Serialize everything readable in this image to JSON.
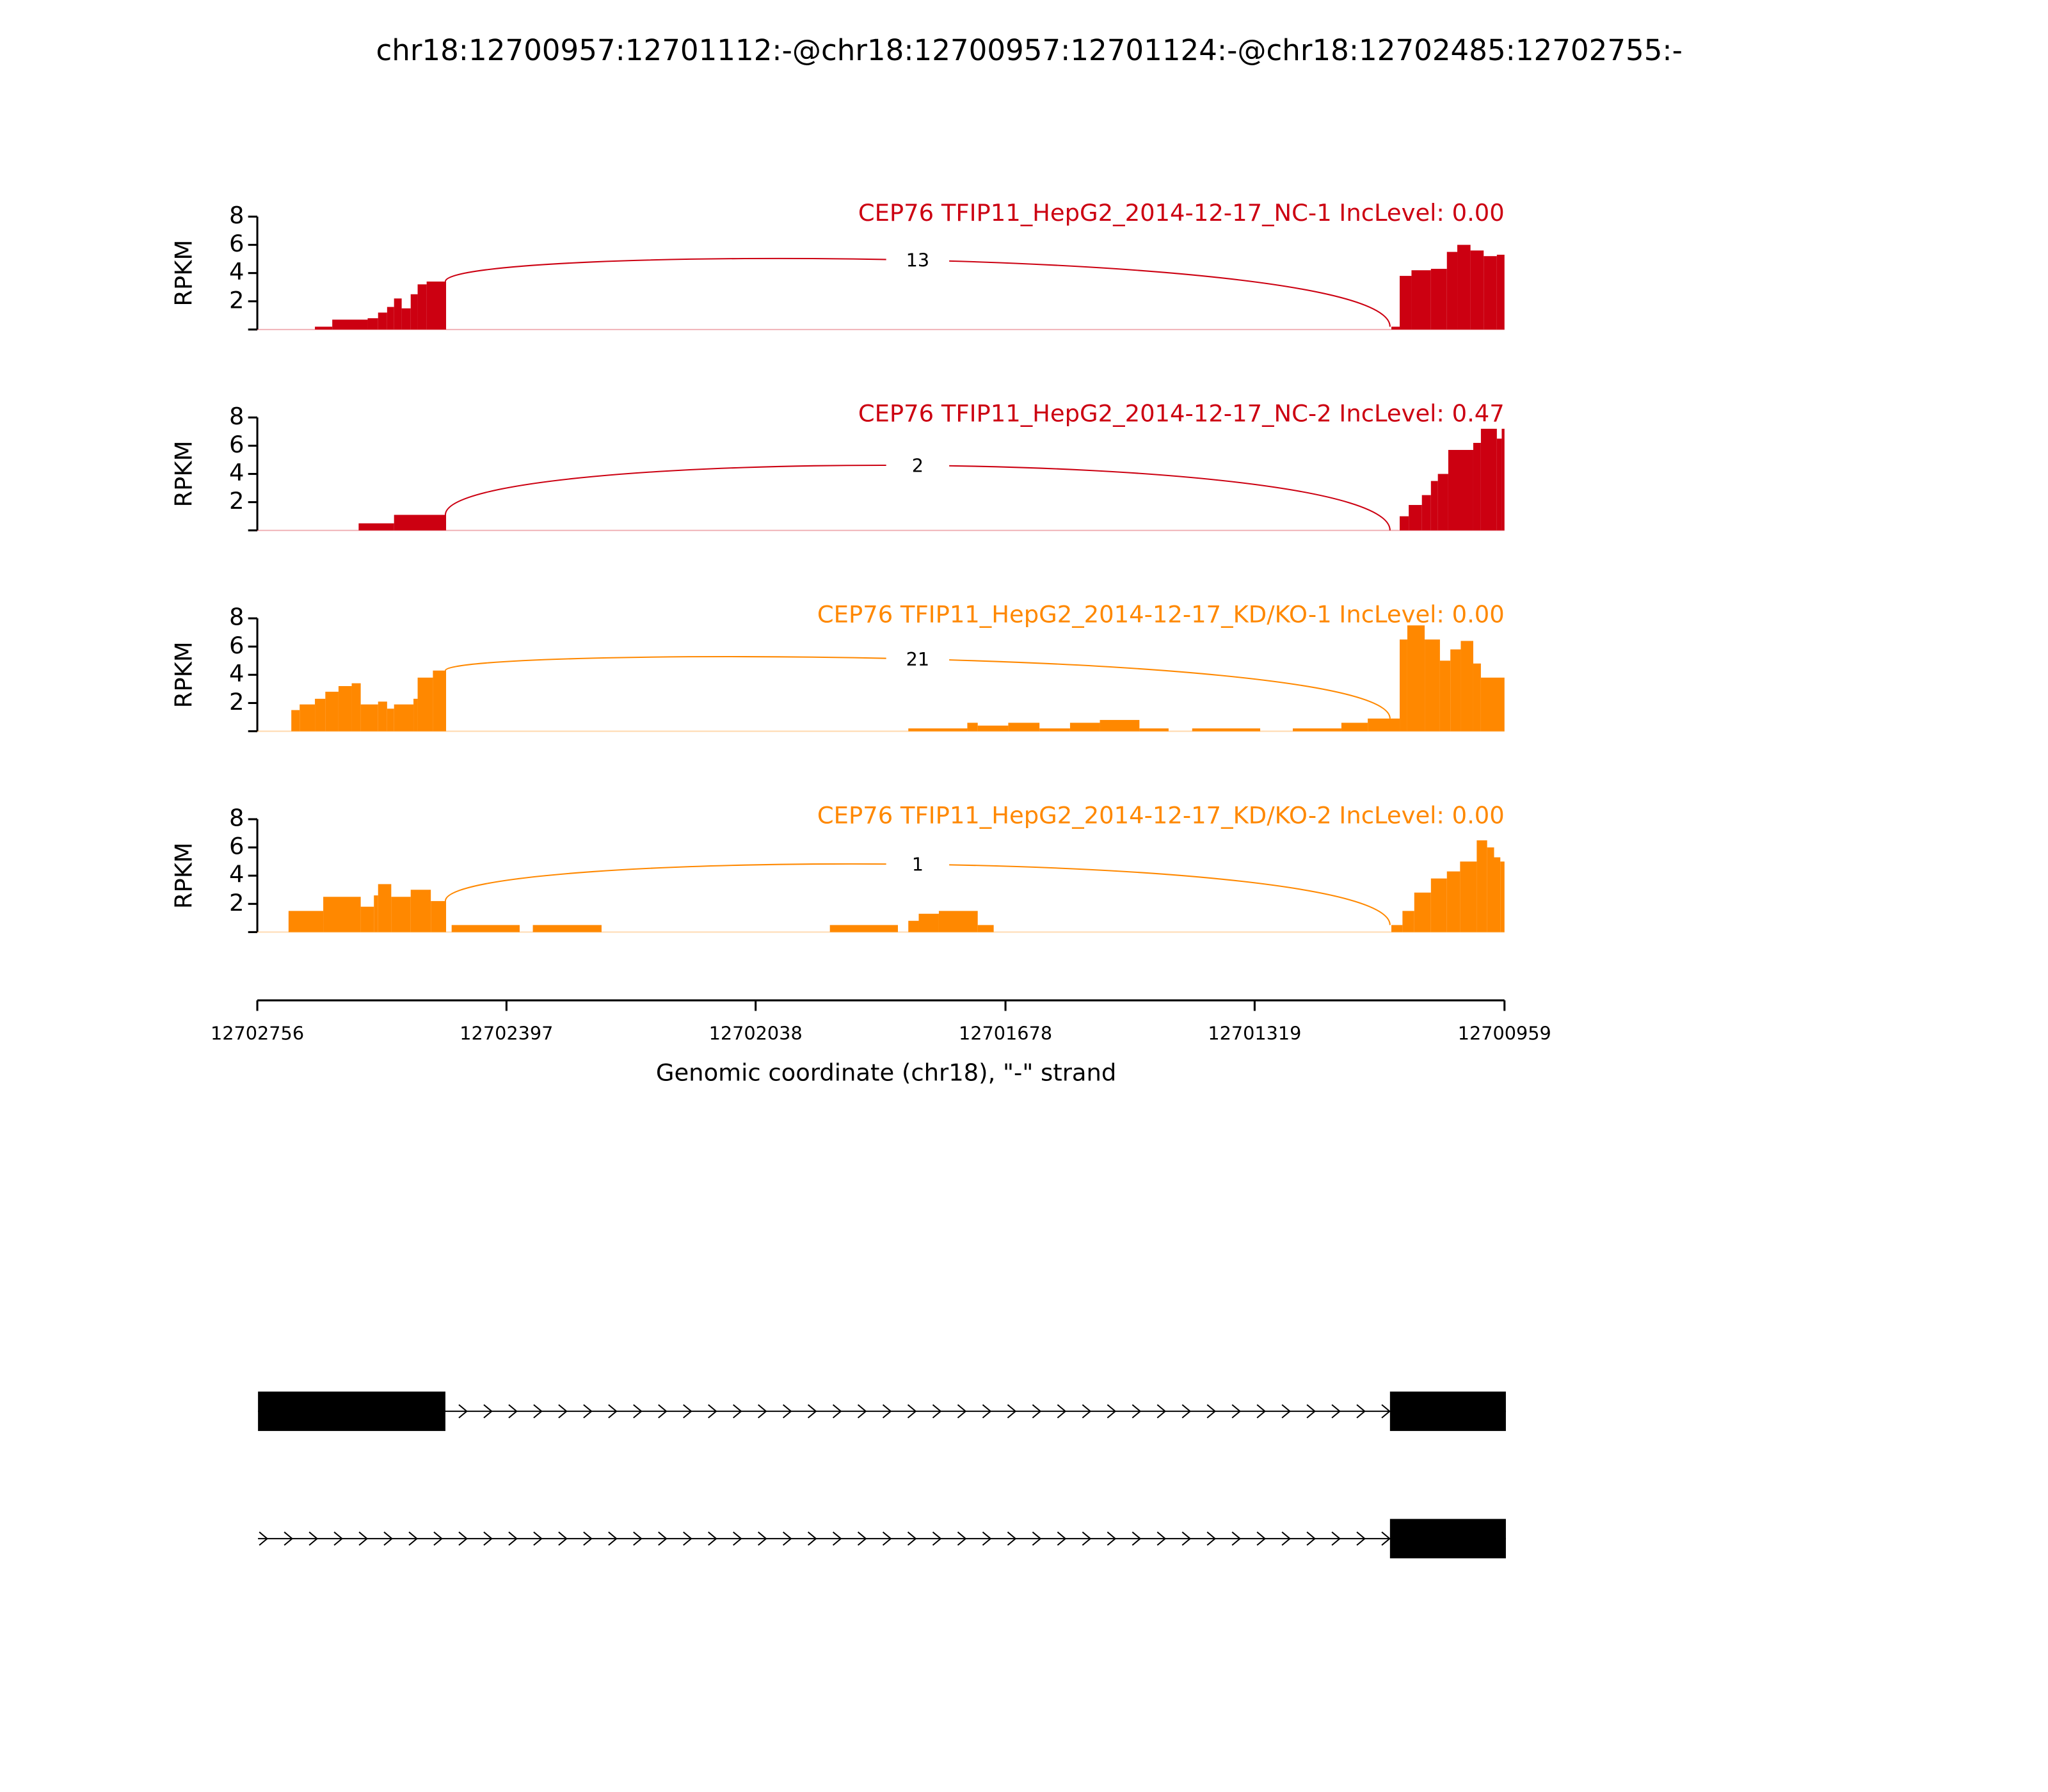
{
  "title": "chr18:12700957:12701112:-@chr18:12700957:12701124:-@chr18:12702485:12702755:-",
  "chart_data": [
    {
      "type": "sashimi",
      "title": "CEP76 TFIP11_HepG2_2014-12-17_NC-1 IncLevel: 0.00",
      "ylabel": "RPKM",
      "color": "#cc0011",
      "xlim": [
        12702756,
        12700959
      ],
      "ylim": [
        0,
        8
      ],
      "yticks": [
        2,
        4,
        6,
        8
      ],
      "x": [
        12702673,
        12702648,
        12702597,
        12702582,
        12702569,
        12702559,
        12702548,
        12702535,
        12702525,
        12702512,
        12702484,
        12701122,
        12701110,
        12701093,
        12701065,
        12701042,
        12701027,
        12701008,
        12700989,
        12700970
      ],
      "values": [
        0.2,
        0.7,
        0.8,
        1.2,
        1.6,
        2.2,
        1.5,
        2.5,
        3.2,
        3.4,
        0,
        0.2,
        3.8,
        4.2,
        4.3,
        5.5,
        6.0,
        5.6,
        5.2,
        5.3
      ],
      "junctions": [
        {
          "from": 12702485,
          "to": 12701124,
          "count": 13
        }
      ]
    },
    {
      "type": "sashimi",
      "title": "CEP76 TFIP11_HepG2_2014-12-17_NC-2 IncLevel: 0.47",
      "ylabel": "RPKM",
      "color": "#cc0011",
      "xlim": [
        12702756,
        12700959
      ],
      "ylim": [
        0,
        8
      ],
      "yticks": [
        2,
        4,
        6,
        8
      ],
      "x": [
        12702610,
        12702559,
        12702484,
        12701110,
        12701097,
        12701078,
        12701065,
        12701055,
        12701040,
        12701004,
        12700993,
        12700970,
        12700963
      ],
      "values": [
        0.5,
        1.1,
        0,
        1.0,
        1.8,
        2.5,
        3.5,
        4.0,
        5.7,
        6.2,
        7.2,
        6.5,
        7.2
      ],
      "junctions": [
        {
          "from": 12702485,
          "to": 12701124,
          "count": 2
        }
      ]
    },
    {
      "type": "sashimi",
      "title": "CEP76 TFIP11_HepG2_2014-12-17_KD/KO-1 IncLevel: 0.00",
      "ylabel": "RPKM",
      "color": "#ff8800",
      "xlim": [
        12702756,
        12700959
      ],
      "ylim": [
        0,
        8
      ],
      "yticks": [
        2,
        4,
        6,
        8
      ],
      "x": [
        12702707,
        12702695,
        12702673,
        12702658,
        12702639,
        12702620,
        12702607,
        12702582,
        12702569,
        12702559,
        12702531,
        12702525,
        12702503,
        12702484,
        12701818,
        12701733,
        12701718,
        12701674,
        12701629,
        12701585,
        12701542,
        12701485,
        12701443,
        12701409,
        12701311,
        12701264,
        12701194,
        12701156,
        12701110,
        12701099,
        12701074,
        12701052,
        12701037,
        12701022,
        12701004,
        12700993
      ],
      "values": [
        1.5,
        1.9,
        2.3,
        2.8,
        3.2,
        3.4,
        1.9,
        2.1,
        1.6,
        1.9,
        2.3,
        3.8,
        4.3,
        0,
        0.2,
        0.6,
        0.4,
        0.6,
        0.2,
        0.6,
        0.8,
        0.2,
        0,
        0.2,
        0,
        0.2,
        0.6,
        0.9,
        6.5,
        7.5,
        6.5,
        5.0,
        5.8,
        6.4,
        4.8,
        3.8
      ],
      "junctions": [
        {
          "from": 12702485,
          "to": 12701124,
          "count": 21
        }
      ]
    },
    {
      "type": "sashimi",
      "title": "CEP76 TFIP11_HepG2_2014-12-17_KD/KO-2 IncLevel: 0.00",
      "ylabel": "RPKM",
      "color": "#ff8800",
      "xlim": [
        12702756,
        12700959
      ],
      "ylim": [
        0,
        8
      ],
      "yticks": [
        2,
        4,
        6,
        8
      ],
      "x": [
        12702711,
        12702661,
        12702607,
        12702588,
        12702582,
        12702563,
        12702535,
        12702506,
        12702484,
        12702476,
        12702378,
        12702359,
        12702260,
        12701931,
        12701833,
        12701818,
        12701803,
        12701774,
        12701718,
        12701695,
        12701122,
        12701106,
        12701089,
        12701065,
        12701042,
        12701023,
        12700999,
        12700984,
        12700974,
        12700965
      ],
      "values": [
        1.5,
        2.5,
        1.8,
        2.6,
        3.4,
        2.5,
        3.0,
        2.2,
        0,
        0.5,
        0,
        0.5,
        0,
        0.5,
        0,
        0.8,
        1.3,
        1.5,
        0.5,
        0,
        0.5,
        1.5,
        2.8,
        3.8,
        4.3,
        5.0,
        6.5,
        6.0,
        5.3,
        5.0
      ],
      "junctions": [
        {
          "from": 12702485,
          "to": 12701124,
          "count": 1
        }
      ],
      "xticks": [
        12702756,
        12702397,
        12702038,
        12701678,
        12701319,
        12700959
      ],
      "xlabel": "Genomic coordinate (chr18), \"-\" strand"
    }
  ],
  "gene_models": [
    {
      "start": 12702755,
      "end": 12700957,
      "exons": [
        [
          12702755,
          12702485
        ],
        [
          12701124,
          12700957
        ]
      ]
    },
    {
      "start": 12702755,
      "end": 12700957,
      "exons": [
        [
          12701124,
          12700957
        ]
      ]
    }
  ]
}
